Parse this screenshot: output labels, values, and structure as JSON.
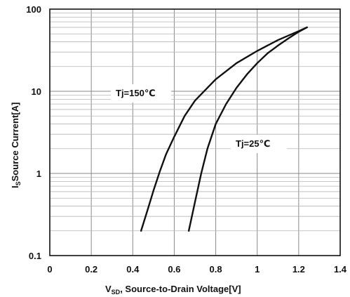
{
  "chart_data": {
    "type": "line",
    "title": "",
    "xlabel": "Vₛ₄ₓ, Source-to-Drain Voltage[V]",
    "xlabel_main": "V",
    "xlabel_sub": "SD",
    "xlabel_rest": ",  Source-to-Drain Voltage[V]",
    "ylabel_main": "I",
    "ylabel_sub": "S",
    "ylabel_rest": "Source Current[A]",
    "xlim": [
      0,
      1.4
    ],
    "ylim": [
      0.1,
      100
    ],
    "yscale": "log",
    "grid": true,
    "x_ticks": [
      0,
      0.2,
      0.4,
      0.6,
      0.8,
      1.0,
      1.2,
      1.4
    ],
    "x_tick_labels": [
      "0",
      "0.2",
      "0.4",
      "0.6",
      "0.8",
      "1",
      "1.2",
      "1.4"
    ],
    "y_ticks": [
      0.1,
      1,
      10,
      100
    ],
    "y_tick_labels": [
      "0.1",
      "1",
      "10",
      "100"
    ],
    "series": [
      {
        "name": "Tj=150℃",
        "x": [
          0.44,
          0.47,
          0.5,
          0.53,
          0.56,
          0.6,
          0.65,
          0.7,
          0.8,
          0.9,
          1.0,
          1.1,
          1.2,
          1.24
        ],
        "y": [
          0.2,
          0.35,
          0.62,
          1.05,
          1.7,
          2.8,
          5.0,
          7.7,
          14.0,
          22.0,
          31.0,
          42.0,
          54.0,
          60.0
        ]
      },
      {
        "name": "Tj=25℃",
        "x": [
          0.67,
          0.7,
          0.73,
          0.76,
          0.8,
          0.85,
          0.9,
          0.95,
          1.0,
          1.05,
          1.1,
          1.15,
          1.2,
          1.24
        ],
        "y": [
          0.2,
          0.45,
          1.0,
          2.0,
          4.0,
          7.0,
          11.0,
          16.0,
          22.0,
          29.0,
          36.0,
          44.0,
          53.0,
          60.0
        ]
      }
    ]
  }
}
